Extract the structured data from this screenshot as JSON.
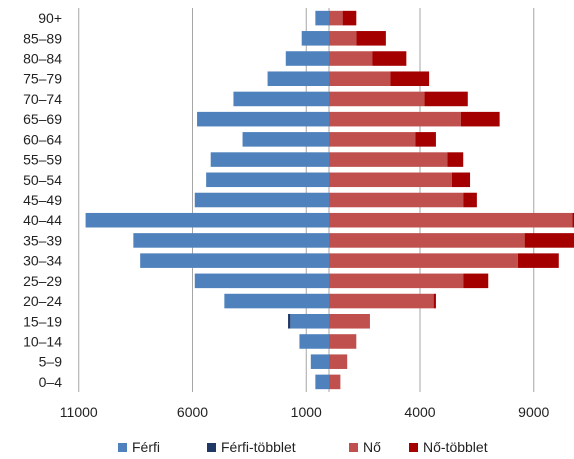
{
  "chart_data": {
    "type": "bar",
    "orientation": "horizontal",
    "layout": "population-pyramid",
    "categories": [
      "90+",
      "85–89",
      "80–84",
      "75–79",
      "70–74",
      "65–69",
      "60–64",
      "55–59",
      "50–54",
      "45–49",
      "40–44",
      "35–39",
      "30–34",
      "25–29",
      "20–24",
      "15–19",
      "10–14",
      "5–9",
      "0–4"
    ],
    "series": [
      {
        "name": "Férfi",
        "side": "left",
        "color": "#4f81bd",
        "values": [
          600,
          1200,
          1900,
          2700,
          4200,
          5800,
          3800,
          5200,
          5400,
          5900,
          10700,
          8600,
          8300,
          5900,
          4600,
          1700,
          1300,
          800,
          600
        ]
      },
      {
        "name": "Férfi-többlet",
        "side": "left",
        "color": "#1f3864",
        "values": [
          0,
          0,
          0,
          0,
          0,
          0,
          0,
          0,
          0,
          0,
          0,
          0,
          0,
          0,
          0,
          100,
          0,
          0,
          0
        ]
      },
      {
        "name": "Nő",
        "side": "right",
        "color": "#c0504d",
        "values": [
          600,
          1200,
          1900,
          2700,
          4200,
          5800,
          3800,
          5200,
          5400,
          5900,
          10700,
          8600,
          8300,
          5900,
          4600,
          1800,
          1200,
          800,
          500
        ]
      },
      {
        "name": "Nő-többlet",
        "side": "right",
        "color": "#a50000",
        "values": [
          600,
          1300,
          1500,
          1700,
          1900,
          1700,
          900,
          700,
          800,
          600,
          100,
          2200,
          1800,
          1100,
          100,
          0,
          0,
          0,
          0
        ]
      }
    ],
    "xaxis": {
      "tick_labels": [
        "11000",
        "6000",
        "1000",
        "4000",
        "9000"
      ],
      "tick_values": [
        -11000,
        -6000,
        -1000,
        4000,
        9000
      ],
      "range": [
        -11000,
        11000
      ]
    },
    "grid": "vertical",
    "legend_position": "bottom",
    "title": "",
    "xlabel": "",
    "ylabel": ""
  }
}
